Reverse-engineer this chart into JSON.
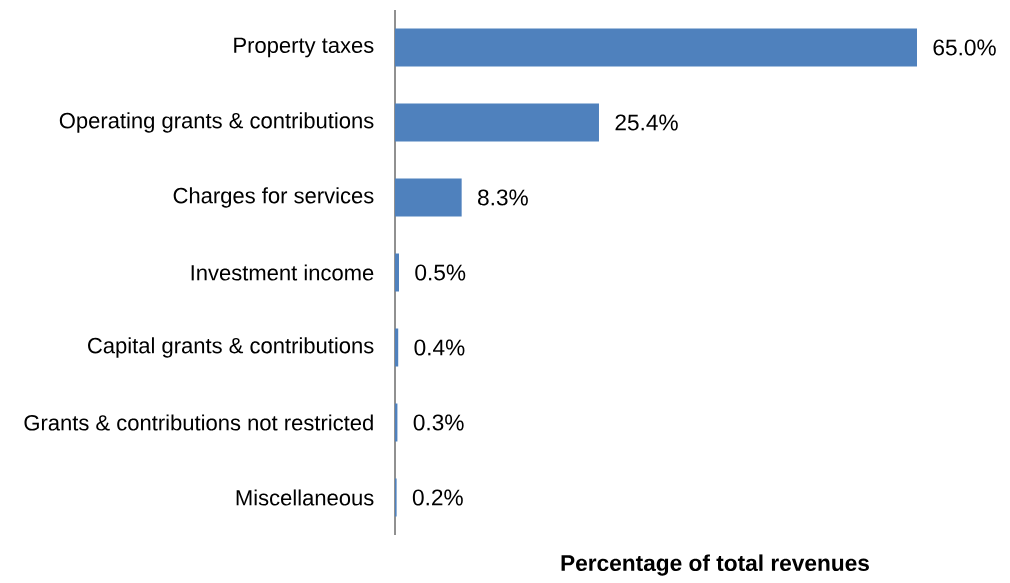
{
  "chart_data": {
    "type": "bar",
    "orientation": "horizontal",
    "xlabel": "Percentage of total revenues",
    "categories": [
      "Property taxes",
      "Operating grants & contributions",
      "Charges for services",
      "Investment income",
      "Capital grants & contributions",
      "Grants & contributions not restricted",
      "Miscellaneous"
    ],
    "values": [
      65.0,
      25.4,
      8.3,
      0.5,
      0.4,
      0.3,
      0.2
    ],
    "value_labels": [
      "65.0%",
      "25.4%",
      "8.3%",
      "0.5%",
      "0.4%",
      "0.3%",
      "0.2%"
    ],
    "color": "#4f81bd"
  }
}
